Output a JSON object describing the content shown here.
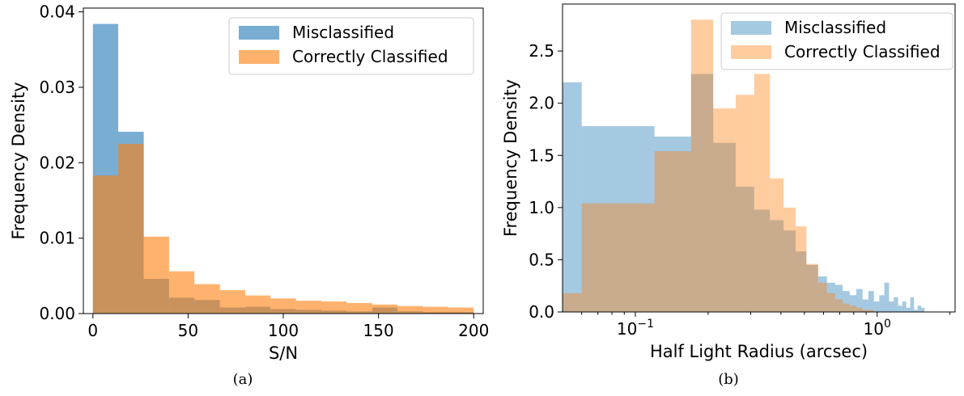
{
  "colors": {
    "blue": "#1f77b4",
    "orange": "#ff7f0e"
  },
  "chart_data": [
    {
      "type": "histogram",
      "caption": "(a)",
      "xlabel": "S/N",
      "ylabel": "Frequency Density",
      "xlim": [
        -5,
        205
      ],
      "ylim": [
        0,
        0.0405
      ],
      "xticks": [
        0,
        50,
        100,
        150,
        200
      ],
      "xtick_labels": [
        "0",
        "50",
        "100",
        "150",
        "200"
      ],
      "yticks": [
        0,
        0.01,
        0.02,
        0.03,
        0.04
      ],
      "ytick_labels": [
        "0.00",
        "0.01",
        "0.02",
        "0.03",
        "0.04"
      ],
      "legend_position": "top-right",
      "series": [
        {
          "name": "Misclassified",
          "color": "#1f77b4",
          "alpha": 0.6,
          "bins": [
            0,
            13.3,
            26.7,
            40,
            53.3,
            66.7,
            80,
            93.3,
            106.7,
            120,
            133.3,
            146.7,
            160,
            173.3,
            186.7,
            200
          ],
          "values": [
            0.0384,
            0.0241,
            0.0046,
            0.0021,
            0.0018,
            0.0008,
            0.0009,
            0.0006,
            0.0005,
            0.0004,
            0.0003,
            0.0008,
            0.0003,
            0.0002,
            0.0002
          ]
        },
        {
          "name": "Correctly Classified",
          "color": "#ff7f0e",
          "alpha": 0.6,
          "bins": [
            0,
            13.3,
            26.7,
            40,
            53.3,
            66.7,
            80,
            93.3,
            106.7,
            120,
            133.3,
            146.7,
            160,
            173.3,
            186.7,
            200
          ],
          "values": [
            0.0183,
            0.0225,
            0.0102,
            0.0056,
            0.0039,
            0.0031,
            0.0024,
            0.002,
            0.0017,
            0.0016,
            0.0014,
            0.0012,
            0.001,
            0.0009,
            0.0008
          ]
        }
      ]
    },
    {
      "type": "histogram",
      "caption": "(b)",
      "xlabel": "Half Light Radius (arcsec)",
      "ylabel": "Frequency Density",
      "xscale": "log",
      "xlim": [
        0.05,
        2.1
      ],
      "ylim": [
        0,
        2.95
      ],
      "xticks": [
        0.1,
        1.0
      ],
      "xtick_labels": [
        "10",
        "10"
      ],
      "xtick_exponents": [
        "−1",
        "0"
      ],
      "yticks": [
        0,
        0.5,
        1.0,
        1.5,
        2.0,
        2.5
      ],
      "ytick_labels": [
        "0.0",
        "0.5",
        "1.0",
        "1.5",
        "2.0",
        "2.5"
      ],
      "legend_position": "top-right",
      "series": [
        {
          "name": "Misclassified",
          "color": "#1f77b4",
          "alpha": 0.4,
          "bins": [
            0.05,
            0.06,
            0.12,
            0.17,
            0.21,
            0.26,
            0.31,
            0.36,
            0.41,
            0.46,
            0.51,
            0.57,
            0.62,
            0.67,
            0.72,
            0.77,
            0.82,
            0.87,
            0.92,
            0.97,
            1.02,
            1.07,
            1.12,
            1.17,
            1.22,
            1.27,
            1.32,
            1.37,
            1.42,
            1.47,
            1.52,
            1.57
          ],
          "values": [
            2.2,
            1.78,
            1.68,
            2.28,
            1.62,
            1.2,
            0.98,
            0.88,
            0.78,
            0.58,
            0.45,
            0.34,
            0.28,
            0.26,
            0.2,
            0.16,
            0.22,
            0.12,
            0.2,
            0.1,
            0.16,
            0.28,
            0.1,
            0.14,
            0.06,
            0.1,
            0.04,
            0.14,
            0.02,
            0.06,
            0.04
          ]
        },
        {
          "name": "Correctly Classified",
          "color": "#ff7f0e",
          "alpha": 0.4,
          "bins": [
            0.05,
            0.06,
            0.12,
            0.17,
            0.21,
            0.26,
            0.31,
            0.36,
            0.41,
            0.46,
            0.51,
            0.57,
            0.62,
            0.67,
            0.72,
            0.77,
            0.82,
            0.87,
            0.92,
            0.97
          ],
          "values": [
            0.18,
            1.04,
            1.54,
            2.8,
            1.95,
            2.08,
            2.28,
            1.28,
            1.0,
            0.82,
            0.46,
            0.28,
            0.18,
            0.12,
            0.08,
            0.06,
            0.04,
            0.02,
            0.02
          ]
        }
      ]
    }
  ]
}
